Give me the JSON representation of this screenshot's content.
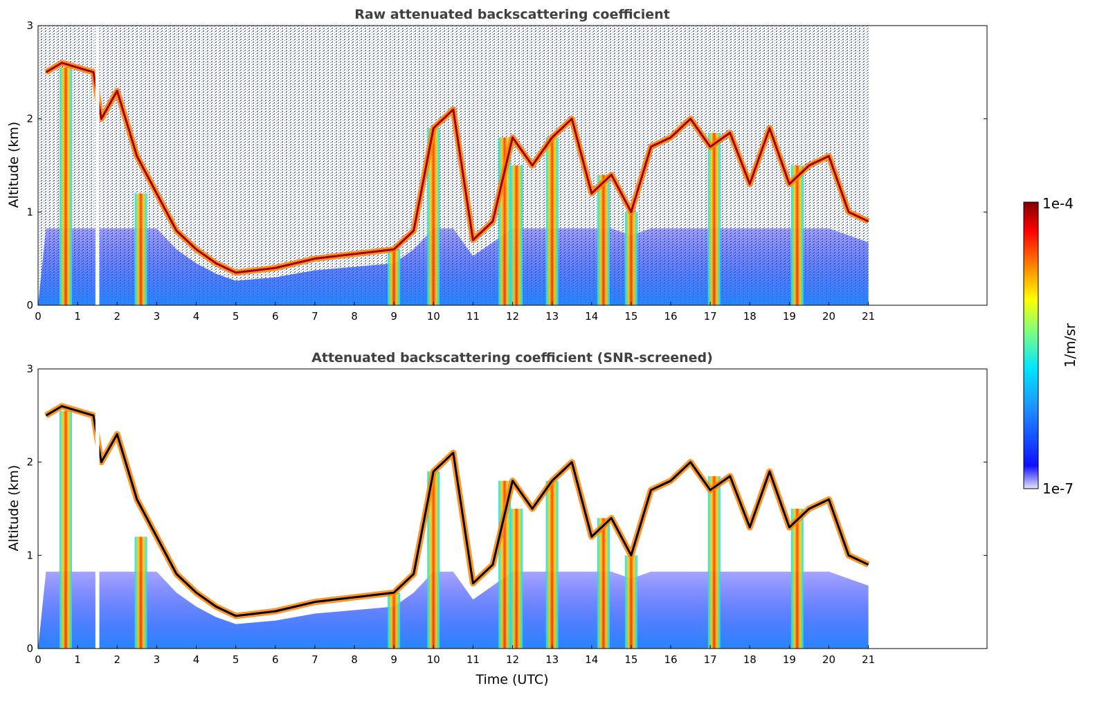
{
  "chart_data": [
    {
      "type": "heatmap",
      "title": "Raw attenuated backscattering coefficient",
      "ylabel": "Altitude (km)",
      "xlabel": "",
      "xlim": [
        0,
        24
      ],
      "ylim": [
        0,
        3
      ],
      "x_ticks": [
        "0",
        "1",
        "2",
        "3",
        "4",
        "5",
        "6",
        "7",
        "8",
        "9",
        "10",
        "11",
        "12",
        "13",
        "14",
        "15",
        "16",
        "17",
        "18",
        "19",
        "20",
        "21"
      ],
      "y_ticks": [
        "0",
        "1",
        "2",
        "3"
      ],
      "data_extent_hours": [
        0,
        21
      ],
      "gap_hours": [
        1.45,
        1.55
      ],
      "cloud_layer": {
        "time_utc": [
          0.2,
          0.6,
          1.0,
          1.4,
          1.6,
          2.0,
          2.5,
          3.0,
          3.5,
          4.0,
          4.5,
          5.0,
          6.0,
          7.0,
          8.0,
          9.0,
          9.5,
          10.0,
          10.5,
          11.0,
          11.5,
          12.0,
          12.5,
          13.0,
          13.5,
          14.0,
          14.5,
          15.0,
          15.5,
          16.0,
          16.5,
          17.0,
          17.5,
          18.0,
          18.5,
          19.0,
          19.5,
          20.0,
          20.5,
          21.0
        ],
        "altitude_km": [
          2.5,
          2.6,
          2.55,
          2.5,
          2.0,
          2.3,
          1.6,
          1.2,
          0.8,
          0.6,
          0.45,
          0.35,
          0.4,
          0.5,
          0.55,
          0.6,
          0.8,
          1.9,
          2.1,
          0.7,
          0.9,
          1.8,
          1.5,
          1.8,
          2.0,
          1.2,
          1.4,
          1.0,
          1.7,
          1.8,
          2.0,
          1.7,
          1.85,
          1.3,
          1.9,
          1.3,
          1.5,
          1.6,
          1.0,
          0.9
        ]
      },
      "grounded_plumes_hours": [
        0.7,
        2.6,
        9.0,
        10.0,
        11.8,
        12.1,
        13.0,
        14.3,
        15.0,
        17.1,
        19.2
      ]
    },
    {
      "type": "heatmap",
      "title": "Attenuated backscattering coefficient (SNR-screened)",
      "ylabel": "Altitude (km)",
      "xlabel": "Time (UTC)",
      "xlim": [
        0,
        24
      ],
      "ylim": [
        0,
        3
      ],
      "x_ticks": [
        "0",
        "1",
        "2",
        "3",
        "4",
        "5",
        "6",
        "7",
        "8",
        "9",
        "10",
        "11",
        "12",
        "13",
        "14",
        "15",
        "16",
        "17",
        "18",
        "19",
        "20",
        "21"
      ],
      "y_ticks": [
        "0",
        "1",
        "2",
        "3"
      ],
      "data_extent_hours": [
        0,
        21
      ],
      "gap_hours": [
        1.45,
        1.55
      ]
    }
  ],
  "colorbar": {
    "label": "1/m/sr",
    "max_label": "1e-4",
    "min_label": "1e-7",
    "scale": "log",
    "range": [
      1e-07,
      0.0001
    ],
    "colormap": [
      "#e6e6fa",
      "#0000ff",
      "#1e90ff",
      "#00e5ff",
      "#7fff7f",
      "#ffff00",
      "#ff8000",
      "#ff0000",
      "#800000"
    ]
  }
}
